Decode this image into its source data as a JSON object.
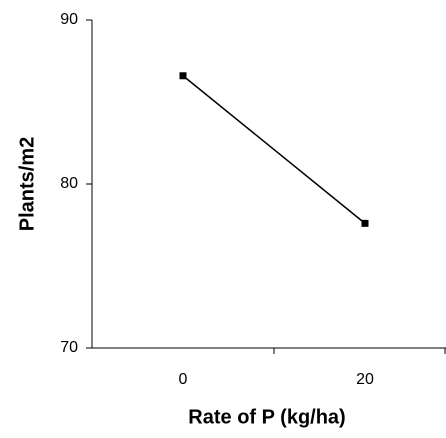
{
  "chart_data": {
    "type": "line",
    "x_label": "Rate of P (kg/ha)",
    "y_label": "Plants/m2",
    "categories": [
      "0",
      "20"
    ],
    "values": [
      86.6,
      77.6
    ],
    "color": "#000000",
    "ylim": [
      70,
      90
    ],
    "yticks": [
      70,
      80,
      90
    ],
    "grid": false
  }
}
